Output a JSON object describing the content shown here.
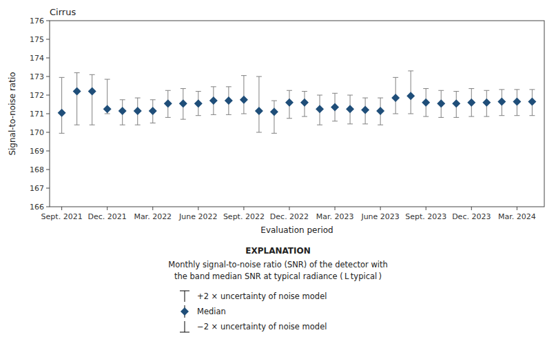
{
  "chart_data": {
    "type": "errorbar",
    "title": "Cirrus",
    "x_label": "Evaluation period",
    "y_label": "Signal-to-noise ratio",
    "categories": [
      "Sept. 2021",
      null,
      null,
      "Dec. 2021",
      null,
      null,
      "Mar. 2022",
      null,
      null,
      "June 2022",
      null,
      null,
      "Sept. 2022",
      null,
      null,
      "Dec. 2022",
      null,
      null,
      "Mar. 2023",
      null,
      null,
      "June 2023",
      null,
      null,
      "Sept. 2023",
      null,
      null,
      "Dec. 2023",
      null,
      null,
      "Mar. 2024",
      null
    ],
    "series": [
      {
        "name": "Median",
        "color": "#1f4e79",
        "marker": "diamond",
        "values": [
          171.05,
          172.2,
          172.2,
          171.25,
          171.15,
          171.15,
          171.15,
          171.55,
          171.55,
          171.55,
          171.7,
          171.7,
          171.75,
          171.15,
          171.1,
          171.6,
          171.6,
          171.25,
          171.35,
          171.25,
          171.2,
          171.15,
          171.85,
          171.95,
          171.6,
          171.55,
          171.55,
          171.6,
          171.6,
          171.65,
          171.65,
          171.65
        ],
        "upper_errors": [
          1.9,
          1.0,
          0.9,
          1.6,
          0.6,
          0.7,
          0.6,
          0.7,
          0.8,
          0.65,
          0.75,
          0.75,
          1.3,
          1.85,
          0.6,
          0.65,
          0.6,
          0.75,
          0.75,
          0.75,
          0.65,
          0.7,
          1.1,
          1.35,
          0.75,
          0.7,
          0.65,
          0.75,
          0.65,
          0.65,
          0.65,
          0.65
        ],
        "lower_errors": [
          1.1,
          1.8,
          1.8,
          0.25,
          0.75,
          0.75,
          0.65,
          0.75,
          0.85,
          0.65,
          0.75,
          0.75,
          0.75,
          1.15,
          1.15,
          0.85,
          0.75,
          0.85,
          0.75,
          0.8,
          0.75,
          0.75,
          0.85,
          0.95,
          0.75,
          0.75,
          0.75,
          0.75,
          0.75,
          0.75,
          0.75,
          0.75
        ]
      }
    ],
    "ylim": [
      166,
      176
    ],
    "yticks": [
      166,
      167,
      168,
      169,
      170,
      171,
      172,
      173,
      174,
      175,
      176
    ],
    "grid": false,
    "legend": "bottom",
    "annotations": [
      "EXPLANATION",
      "Monthly signal-to-noise ratio (SNR) of the detector with",
      "the band median SNR at typical radiance ( L typical )",
      "+2 × uncertainty of noise model",
      "−2 × uncertainty of noise model"
    ]
  }
}
